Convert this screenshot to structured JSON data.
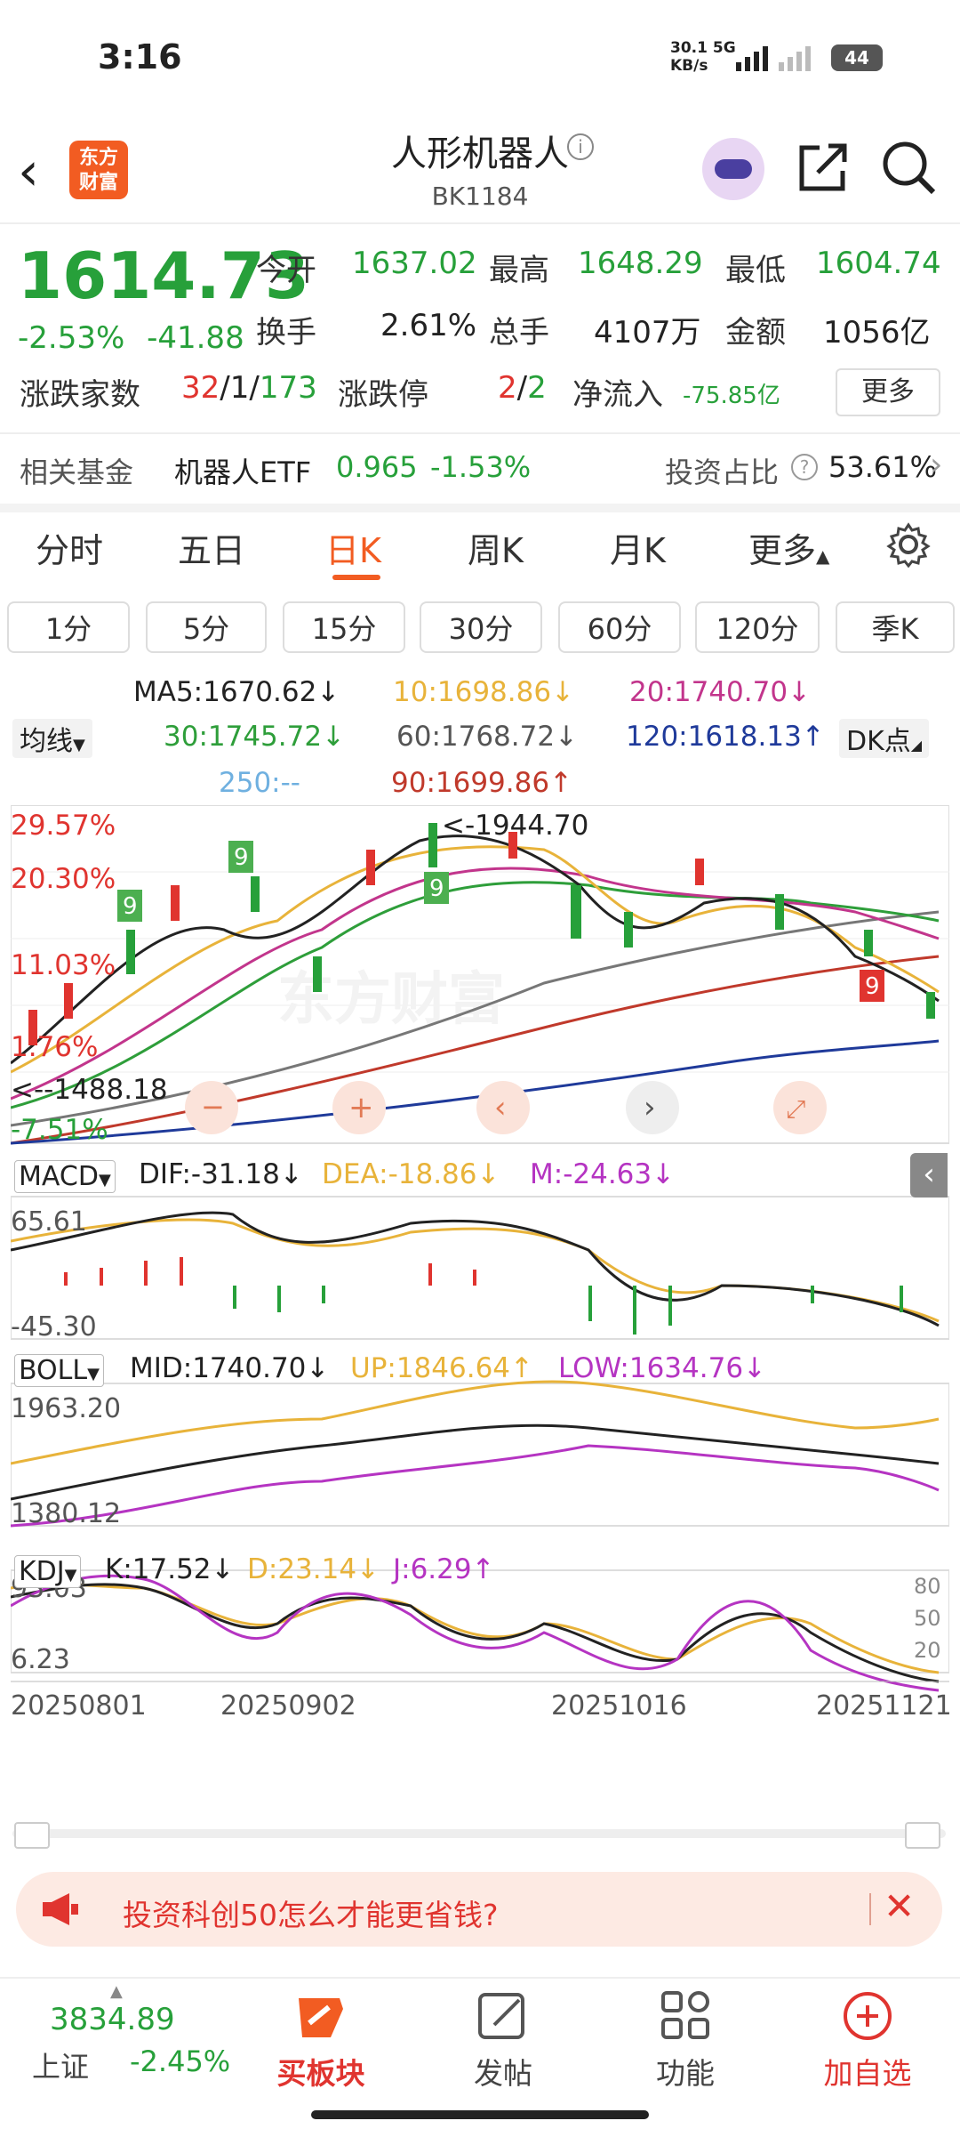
{
  "status_bar": {
    "time": "3:16",
    "net_speed": "30.1",
    "net_unit": "KB/s",
    "net_type": "5G",
    "battery": "44"
  },
  "header": {
    "title": "人形机器人",
    "code": "BK1184",
    "logo_text_1": "东方",
    "logo_text_2": "财富",
    "info_icon": "info-icon",
    "share_icon": "share-icon",
    "search_icon": "search-icon"
  },
  "quote": {
    "price": "1614.73",
    "change_pct": "-2.53%",
    "change": "-41.88",
    "open_label": "今开",
    "open": "1637.02",
    "high_label": "最高",
    "high": "1648.29",
    "low_label": "最低",
    "low": "1604.74",
    "turnover_label": "换手",
    "turnover": "2.61%",
    "volume_label": "总手",
    "volume": "4107万",
    "amount_label": "金额",
    "amount": "1056亿",
    "breadth_label": "涨跌家数",
    "breadth_up": "32",
    "breadth_flat": "1",
    "breadth_down": "173",
    "limit_label": "涨跌停",
    "limit_up": "2",
    "limit_down": "2",
    "inflow_label": "净流入",
    "inflow": "-75.85亿",
    "more": "更多"
  },
  "fund": {
    "label": "相关基金",
    "name": "机器人ETF",
    "price": "0.965",
    "change": "-1.53%",
    "ratio_label": "投资占比",
    "ratio": "53.61%"
  },
  "period_tabs": [
    "分时",
    "五日",
    "日K",
    "周K",
    "月K",
    "更多"
  ],
  "active_period": "日K",
  "minute_buttons": [
    "1分",
    "5分",
    "15分",
    "30分",
    "60分",
    "120分",
    "季K"
  ],
  "ma_legend": {
    "selector": "均线",
    "ma5": "MA5:1670.62↓",
    "ma10": "10:1698.86↓",
    "ma20": "20:1740.70↓",
    "ma30": "30:1745.72↓",
    "ma60": "60:1768.72↓",
    "ma120": "120:1618.13↑",
    "ma250": "250:--",
    "ma90": "90:1699.86↑",
    "dk": "DK点"
  },
  "main_chart": {
    "pct_labels": [
      "29.57%",
      "20.30%",
      "11.03%",
      "1.76%",
      "-7.51%"
    ],
    "max_label": "<-1944.70",
    "min_label": "<--1488.18",
    "watermark": "东方财富"
  },
  "macd": {
    "name": "MACD",
    "dif": "DIF:-31.18↓",
    "dea": "DEA:-18.86↓",
    "m": "M:-24.63↓",
    "top": "65.61",
    "bottom": "-45.30"
  },
  "boll": {
    "name": "BOLL",
    "mid": "MID:1740.70↓",
    "up": "UP:1846.64↑",
    "low": "LOW:1634.76↓",
    "top": "1963.20",
    "bottom": "1380.12"
  },
  "kdj": {
    "name": "KDJ",
    "k": "K:17.52↓",
    "d": "D:23.14↓",
    "j": "J:6.29↑",
    "top": "93.03",
    "bottom": "6.23",
    "levels": [
      "80",
      "50",
      "20"
    ]
  },
  "dates": [
    "20250801",
    "20250902",
    "20251016",
    "20251121"
  ],
  "ad": {
    "text": "投资科创50怎么才能更省钱?"
  },
  "bottom_nav": {
    "index_value": "3834.89",
    "index_name": "上证",
    "index_change": "-2.45%",
    "items": [
      "买板块",
      "发帖",
      "功能",
      "加自选"
    ]
  },
  "colors": {
    "up": "#e0342f",
    "down": "#27a03a",
    "accent": "#f25c22",
    "ma10": "#e8b33a",
    "ma20": "#c2358c",
    "ma120": "#1f3a9a"
  }
}
